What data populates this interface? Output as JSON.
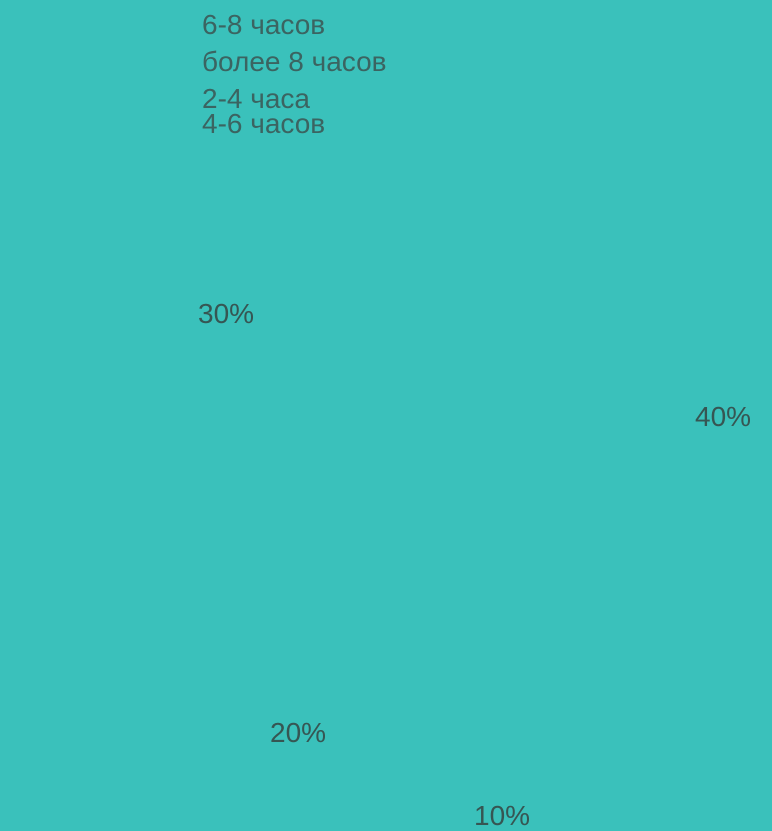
{
  "chart_data": {
    "type": "pie",
    "title": "",
    "background": "#3ac1bb",
    "label_color": "#365653",
    "legend_color": "#3b6461",
    "legend": [
      "6-8 часов",
      "более 8 часов",
      "2-4 часа",
      "4-6 часов"
    ],
    "data_labels": [
      "30%",
      "40%",
      "20%",
      "10%"
    ],
    "values": [
      30,
      40,
      20,
      10
    ]
  }
}
